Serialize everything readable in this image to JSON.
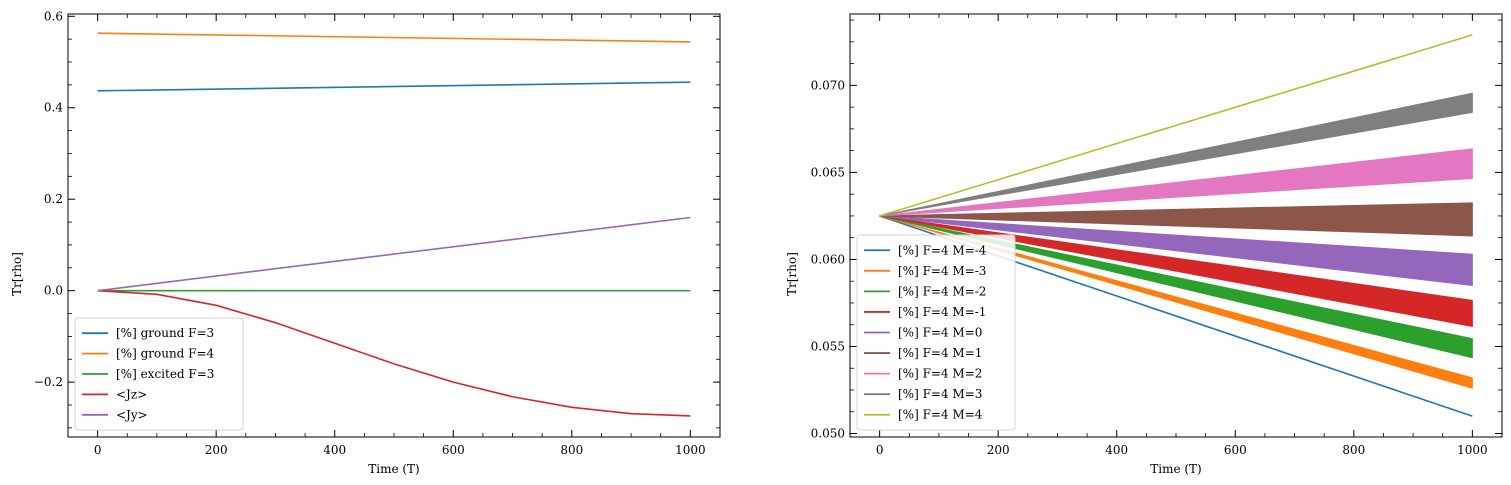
{
  "chart_data": [
    {
      "type": "line",
      "xlabel": "Time (T)",
      "ylabel": "Tr[rho]",
      "xlim": [
        -50,
        1050
      ],
      "ylim": [
        -0.32,
        0.605
      ],
      "xticks": [
        0,
        200,
        400,
        600,
        800,
        1000
      ],
      "xtick_labels": [
        "0",
        "200",
        "400",
        "600",
        "800",
        "1000"
      ],
      "yticks": [
        -0.2,
        0.0,
        0.2,
        0.4,
        0.6
      ],
      "ytick_labels": [
        "−0.2",
        "0.0",
        "0.2",
        "0.4",
        "0.6"
      ],
      "legend_position": "lower-left",
      "series": [
        {
          "name": "[%] ground  F=3",
          "color": "#1f77b4",
          "x": [
            0,
            1000
          ],
          "y": [
            0.437,
            0.456
          ]
        },
        {
          "name": "[%] ground  F=4",
          "color": "#ff7f0e",
          "x": [
            0,
            1000
          ],
          "y": [
            0.563,
            0.544
          ]
        },
        {
          "name": "[%] excited F=3",
          "color": "#2ca02c",
          "x": [
            0,
            1000
          ],
          "y": [
            0.0,
            0.0
          ]
        },
        {
          "name": "<Jz>",
          "color": "#d62728",
          "x": [
            0,
            100,
            200,
            300,
            400,
            500,
            600,
            700,
            800,
            900,
            1000
          ],
          "y": [
            0.0,
            -0.008,
            -0.032,
            -0.07,
            -0.115,
            -0.16,
            -0.2,
            -0.232,
            -0.255,
            -0.269,
            -0.274
          ]
        },
        {
          "name": "<Jy>",
          "color": "#9467bd",
          "x": [
            0,
            1000
          ],
          "y": [
            0.0,
            0.16
          ]
        }
      ]
    },
    {
      "type": "line",
      "xlabel": "Time (T)",
      "ylabel": "Tr[rho]",
      "xlim": [
        -50,
        1050
      ],
      "ylim": [
        0.0498,
        0.0741
      ],
      "xticks": [
        0,
        200,
        400,
        600,
        800,
        1000
      ],
      "xtick_labels": [
        "0",
        "200",
        "400",
        "600",
        "800",
        "1000"
      ],
      "yticks": [
        0.05,
        0.055,
        0.06,
        0.065,
        0.07
      ],
      "ytick_labels": [
        "0.050",
        "0.055",
        "0.060",
        "0.065",
        "0.070"
      ],
      "legend_position": "lower-left",
      "series": [
        {
          "name": "[%] F=4  M=-4",
          "color": "#1f77b4",
          "x": [
            0,
            1000
          ],
          "y": [
            0.0625,
            0.051
          ],
          "band": [
            0.0,
            0.0
          ]
        },
        {
          "name": "[%] F=4  M=-3",
          "color": "#ff7f0e",
          "x": [
            0,
            1000
          ],
          "y": [
            0.0625,
            0.0529
          ],
          "band": [
            0.0,
            0.0006
          ]
        },
        {
          "name": "[%] F=4  M=-2",
          "color": "#2ca02c",
          "x": [
            0,
            1000
          ],
          "y": [
            0.0625,
            0.0549
          ],
          "band": [
            0.0,
            0.0011
          ]
        },
        {
          "name": "[%] F=4  M=-1",
          "color": "#d62728",
          "x": [
            0,
            1000
          ],
          "y": [
            0.0625,
            0.0569
          ],
          "band": [
            0.0,
            0.0015
          ]
        },
        {
          "name": "[%] F=4  M=0",
          "color": "#9467bd",
          "x": [
            0,
            1000
          ],
          "y": [
            0.0625,
            0.0594
          ],
          "band": [
            0.0,
            0.0018
          ]
        },
        {
          "name": "[%] F=4  M=1",
          "color": "#8c564b",
          "x": [
            0,
            1000
          ],
          "y": [
            0.0625,
            0.0623
          ],
          "band": [
            0.0,
            0.0019
          ]
        },
        {
          "name": "[%] F=4  M=2",
          "color": "#e377c2",
          "x": [
            0,
            1000
          ],
          "y": [
            0.0625,
            0.0655
          ],
          "band": [
            0.0,
            0.0017
          ]
        },
        {
          "name": "[%] F=4  M=3",
          "color": "#7f7f7f",
          "x": [
            0,
            1000
          ],
          "y": [
            0.0625,
            0.069
          ],
          "band": [
            0.0,
            0.0011
          ]
        },
        {
          "name": "[%] F=4  M=4",
          "color": "#bcbd22",
          "x": [
            0,
            1000
          ],
          "y": [
            0.0625,
            0.0729
          ],
          "band": [
            0.0,
            0.0
          ]
        }
      ]
    }
  ]
}
